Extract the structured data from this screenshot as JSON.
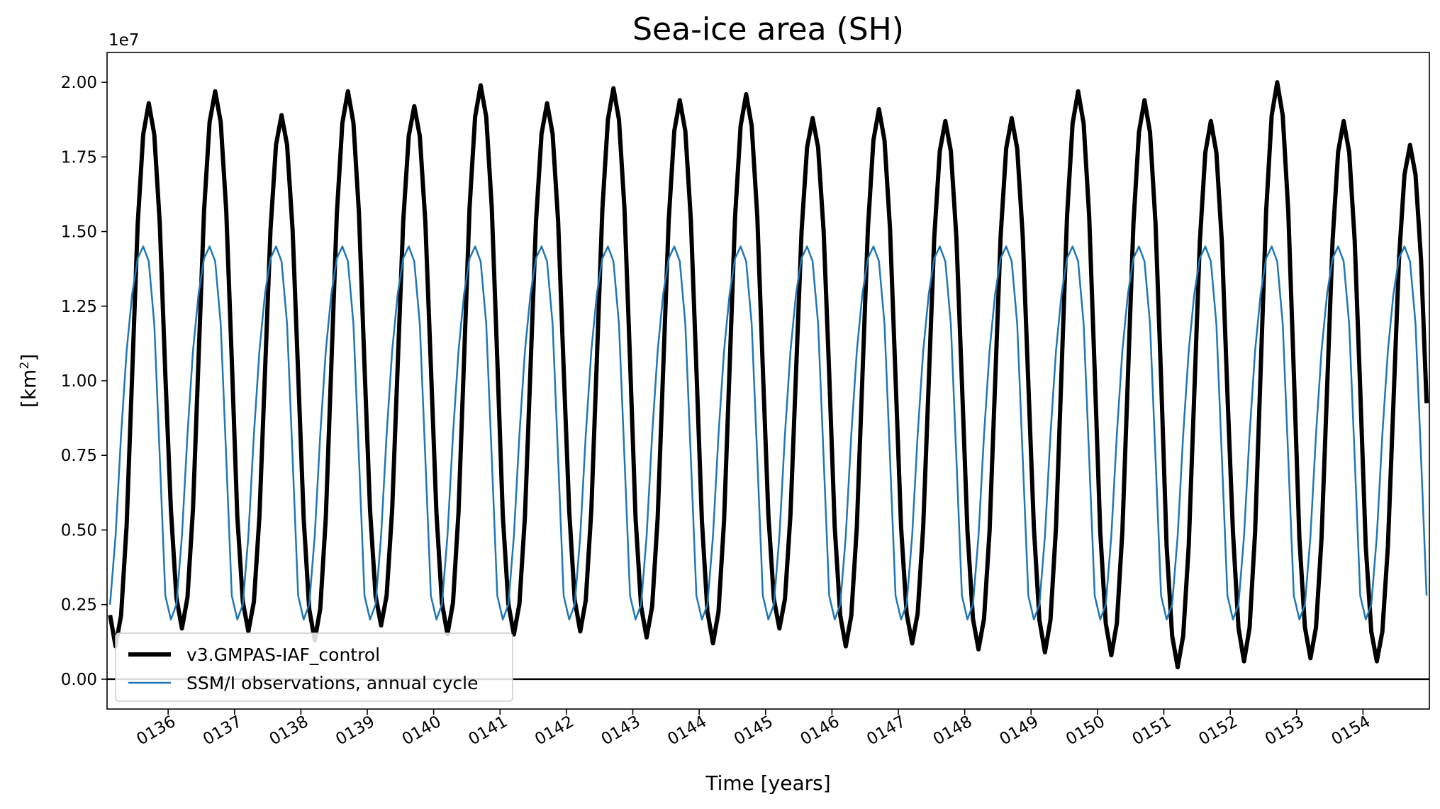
{
  "chart_data": {
    "type": "line",
    "title": "Sea-ice area (SH)",
    "xlabel": "Time [years]",
    "ylabel_main": "[km",
    "ylabel_sup": "2",
    "ylabel_close": "]",
    "y_offset_label": "1e7",
    "ylim": [
      -0.1,
      2.1
    ],
    "xlim": [
      135.08,
      155.0
    ],
    "y_scale_note": "values in units of 1e7 km^2",
    "y_ticks": [
      0.0,
      0.25,
      0.5,
      0.75,
      1.0,
      1.25,
      1.5,
      1.75,
      2.0
    ],
    "y_tick_labels": [
      "0.00",
      "0.25",
      "0.50",
      "0.75",
      "1.00",
      "1.25",
      "1.50",
      "1.75",
      "2.00"
    ],
    "x_ticks": [
      136,
      137,
      138,
      139,
      140,
      141,
      142,
      143,
      144,
      145,
      146,
      147,
      148,
      149,
      150,
      151,
      152,
      153,
      154
    ],
    "x_tick_labels": [
      "0136",
      "0137",
      "0138",
      "0139",
      "0140",
      "0141",
      "0142",
      "0143",
      "0144",
      "0145",
      "0146",
      "0147",
      "0148",
      "0149",
      "0150",
      "0151",
      "0152",
      "0153",
      "0154"
    ],
    "zero_line": true,
    "grid": false,
    "legend_position": "lower-left",
    "series": [
      {
        "name": "v3.GMPAS-IAF_control",
        "color": "#000000",
        "peaks": [
          1.93,
          1.97,
          1.89,
          1.97,
          1.92,
          1.99,
          1.93,
          1.98,
          1.94,
          1.96,
          1.88,
          1.91,
          1.87,
          1.88,
          1.97,
          1.94,
          1.87,
          2.0,
          1.87,
          1.79
        ],
        "minima": [
          0.11,
          0.17,
          0.16,
          0.13,
          0.18,
          0.15,
          0.15,
          0.16,
          0.14,
          0.12,
          0.17,
          0.11,
          0.12,
          0.1,
          0.09,
          0.08,
          0.04,
          0.06,
          0.07,
          0.06
        ]
      },
      {
        "name": "SSM/I observations, annual cycle",
        "color": "#1f77b4",
        "annual_cycle": [
          0.2,
          0.25,
          0.48,
          0.82,
          1.1,
          1.29,
          1.41,
          1.45,
          1.4,
          1.19,
          0.74,
          0.28
        ]
      }
    ]
  }
}
